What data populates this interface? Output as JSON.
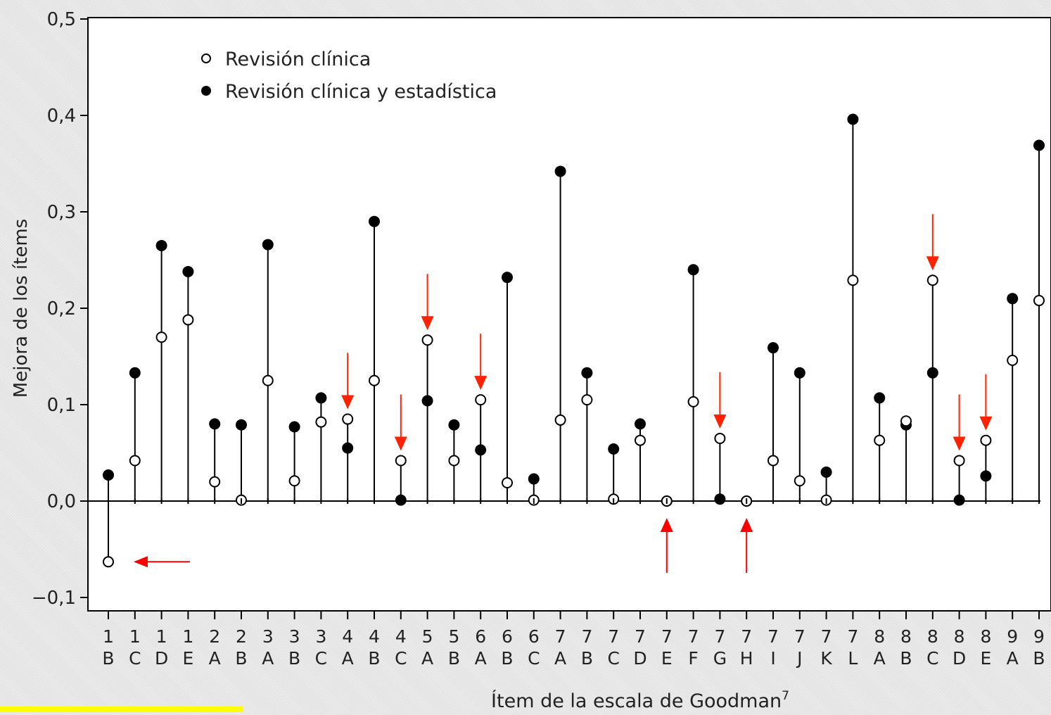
{
  "chart_data": {
    "type": "scatter",
    "xlabel": "Ítem de la escala de Goodman",
    "xlabel_sup": "7",
    "ylabel": "Mejora de los ítems",
    "ylim": [
      -0.1,
      0.5
    ],
    "yticks": [
      -0.1,
      0.0,
      0.1,
      0.2,
      0.3,
      0.4,
      0.5
    ],
    "ytick_labels": [
      "−0,1",
      "0,0",
      "0,1",
      "0,2",
      "0,3",
      "0,4",
      "0,5"
    ],
    "legend_position": "top-left",
    "categories": [
      {
        "num": "1",
        "letter": "B"
      },
      {
        "num": "1",
        "letter": "C"
      },
      {
        "num": "1",
        "letter": "D"
      },
      {
        "num": "1",
        "letter": "E"
      },
      {
        "num": "2",
        "letter": "A"
      },
      {
        "num": "2",
        "letter": "B"
      },
      {
        "num": "3",
        "letter": "A"
      },
      {
        "num": "3",
        "letter": "B"
      },
      {
        "num": "3",
        "letter": "C"
      },
      {
        "num": "4",
        "letter": "A"
      },
      {
        "num": "4",
        "letter": "B"
      },
      {
        "num": "4",
        "letter": "C"
      },
      {
        "num": "5",
        "letter": "A"
      },
      {
        "num": "5",
        "letter": "B"
      },
      {
        "num": "6",
        "letter": "A"
      },
      {
        "num": "6",
        "letter": "B"
      },
      {
        "num": "6",
        "letter": "C"
      },
      {
        "num": "7",
        "letter": "A"
      },
      {
        "num": "7",
        "letter": "B"
      },
      {
        "num": "7",
        "letter": "C"
      },
      {
        "num": "7",
        "letter": "D"
      },
      {
        "num": "7",
        "letter": "E"
      },
      {
        "num": "7",
        "letter": "F"
      },
      {
        "num": "7",
        "letter": "G"
      },
      {
        "num": "7",
        "letter": "H"
      },
      {
        "num": "7",
        "letter": "I"
      },
      {
        "num": "7",
        "letter": "J"
      },
      {
        "num": "7",
        "letter": "K"
      },
      {
        "num": "7",
        "letter": "L"
      },
      {
        "num": "8",
        "letter": "A"
      },
      {
        "num": "8",
        "letter": "B"
      },
      {
        "num": "8",
        "letter": "C"
      },
      {
        "num": "8",
        "letter": "D"
      },
      {
        "num": "8",
        "letter": "E"
      },
      {
        "num": "9",
        "letter": "A"
      },
      {
        "num": "9",
        "letter": "B"
      }
    ],
    "series": [
      {
        "name": "Revisión clínica",
        "marker": "open-circle",
        "values": [
          -0.063,
          0.042,
          0.17,
          0.188,
          0.02,
          0.001,
          0.125,
          0.021,
          0.082,
          0.085,
          0.125,
          0.042,
          0.167,
          0.042,
          0.105,
          0.019,
          0.001,
          0.084,
          0.105,
          0.002,
          0.063,
          0.0,
          0.103,
          0.065,
          0.0,
          0.042,
          0.021,
          0.001,
          0.229,
          0.063,
          0.083,
          0.229,
          0.042,
          0.063,
          0.146,
          0.208
        ]
      },
      {
        "name": "Revisión clínica y estadística",
        "marker": "filled-circle",
        "values": [
          0.027,
          0.133,
          0.265,
          0.238,
          0.08,
          0.079,
          0.266,
          0.077,
          0.107,
          0.055,
          0.29,
          0.001,
          0.104,
          0.079,
          0.053,
          0.232,
          0.023,
          0.342,
          0.133,
          0.054,
          0.08,
          0.0,
          0.24,
          0.002,
          0.0,
          0.159,
          0.133,
          0.03,
          0.396,
          0.107,
          0.079,
          0.133,
          0.001,
          0.026,
          0.21,
          0.369
        ]
      }
    ],
    "highlight_arrows": [
      {
        "category_index": 0,
        "direction": "left",
        "color": "#ff0000"
      },
      {
        "category_index": 9,
        "direction": "down",
        "color": "#ff2200"
      },
      {
        "category_index": 11,
        "direction": "down",
        "color": "#ff2200"
      },
      {
        "category_index": 12,
        "direction": "down",
        "color": "#ff2200"
      },
      {
        "category_index": 14,
        "direction": "down",
        "color": "#ff2200"
      },
      {
        "category_index": 21,
        "direction": "up",
        "color": "#ff0000"
      },
      {
        "category_index": 23,
        "direction": "down",
        "color": "#ff2200"
      },
      {
        "category_index": 24,
        "direction": "up",
        "color": "#ff0000"
      },
      {
        "category_index": 31,
        "direction": "down",
        "color": "#ff2200"
      },
      {
        "category_index": 32,
        "direction": "down",
        "color": "#ff2200"
      },
      {
        "category_index": 33,
        "direction": "down",
        "color": "#ff2200"
      }
    ],
    "colors": {
      "axis": "#000000",
      "arrow": "#ff2200",
      "background": "#e4e4e4",
      "plot_background": "#ffffff",
      "corner_strip": "#ffff00"
    }
  }
}
